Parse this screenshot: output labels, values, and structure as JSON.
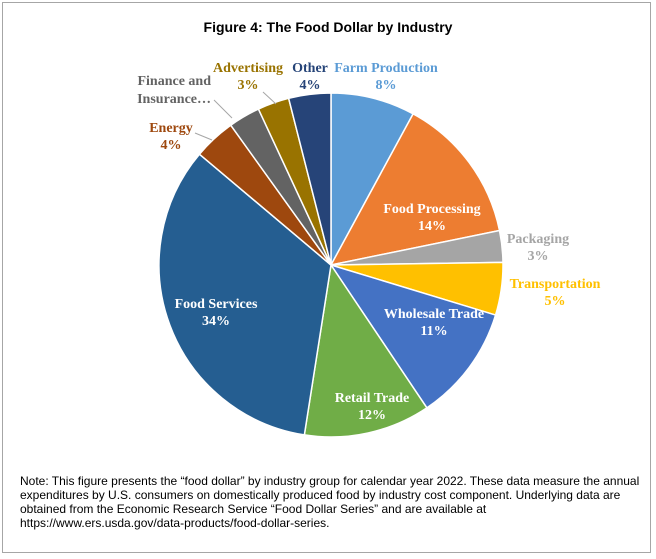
{
  "chart_data": {
    "type": "pie",
    "title": "Figure 4: The Food Dollar by Industry",
    "slices": [
      {
        "label": "Farm Production",
        "value": 8,
        "value_label": "8%",
        "color": "#5b9bd5",
        "label_color": "#5b9bd5"
      },
      {
        "label": "Food Processing",
        "value": 14,
        "value_label": "14%",
        "color": "#ed7d31",
        "label_color": "#ffffff"
      },
      {
        "label": "Packaging",
        "value": 3,
        "value_label": "3%",
        "color": "#a5a5a5",
        "label_color": "#a5a5a5"
      },
      {
        "label": "Transportation",
        "value": 5,
        "value_label": "5%",
        "color": "#ffc000",
        "label_color": "#ffc000"
      },
      {
        "label": "Wholesale Trade",
        "value": 11,
        "value_label": "11%",
        "color": "#4472c4",
        "label_color": "#ffffff"
      },
      {
        "label": "Retail Trade",
        "value": 12,
        "value_label": "12%",
        "color": "#70ad47",
        "label_color": "#ffffff"
      },
      {
        "label": "Food Services",
        "value": 34,
        "value_label": "34%",
        "color": "#255e91",
        "label_color": "#ffffff"
      },
      {
        "label": "Energy",
        "value": 4,
        "value_label": "4%",
        "color": "#9e480e",
        "label_color": "#9e480e"
      },
      {
        "label": "Finance and Insurance…",
        "value": 3,
        "value_label": "",
        "color": "#636363",
        "label_color": "#636363"
      },
      {
        "label": "Advertising",
        "value": 3,
        "value_label": "3%",
        "color": "#997300",
        "label_color": "#997300"
      },
      {
        "label": "Other",
        "value": 4,
        "value_label": "4%",
        "color": "#264478",
        "label_color": "#264478"
      }
    ],
    "legend": "none"
  },
  "note": "Note: This figure presents the “food dollar” by industry group for calendar year 2022. These data measure the annual expenditures by U.S. consumers on domestically produced food by industry cost component. Underlying data are obtained from the Economic Research Service “Food Dollar Series” and are available at https://www.ers.usda.gov/data-products/food-dollar-series."
}
